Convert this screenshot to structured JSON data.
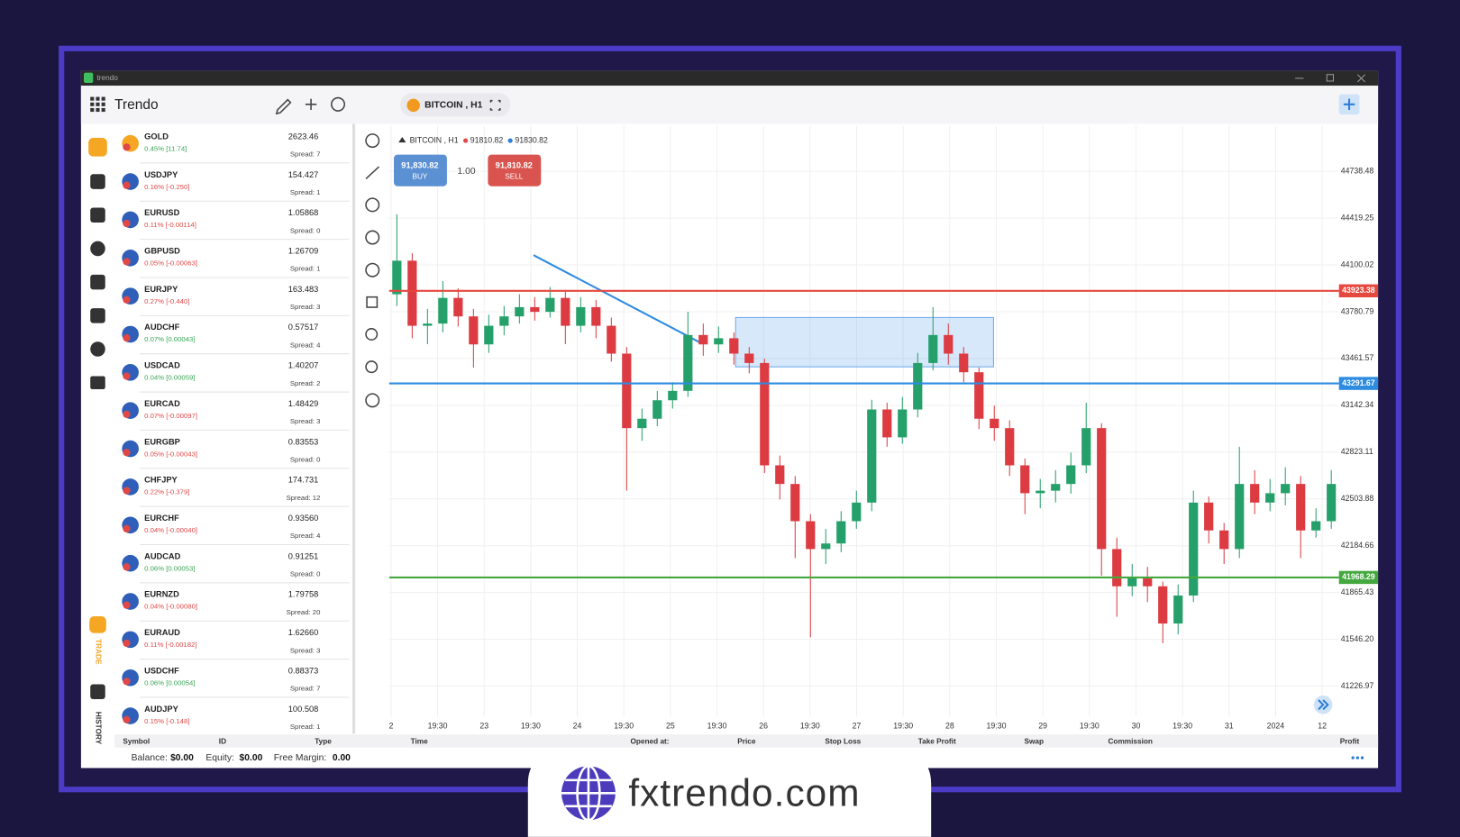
{
  "window": {
    "title": "trendo"
  },
  "header": {
    "app_name": "Trendo",
    "tab": "BITCOIN , H1"
  },
  "sidebar": {
    "trade": "TRADE",
    "history": "HISTORY"
  },
  "watchlist": [
    {
      "symbol": "GOLD",
      "change": "0.45% [11.74]",
      "price": "2623.46",
      "spread": "Spread: 7",
      "color": "#3aa655"
    },
    {
      "symbol": "USDJPY",
      "change": "0.16% [-0.250]",
      "price": "154.427",
      "spread": "Spread: 1",
      "color": "#e04848"
    },
    {
      "symbol": "EURUSD",
      "change": "0.11% [-0.00114]",
      "price": "1.05868",
      "spread": "Spread: 0",
      "color": "#e04848"
    },
    {
      "symbol": "GBPUSD",
      "change": "0.05% [-0.00063]",
      "price": "1.26709",
      "spread": "Spread: 1",
      "color": "#e04848"
    },
    {
      "symbol": "EURJPY",
      "change": "0.27% [-0.440]",
      "price": "163.483",
      "spread": "Spread: 3",
      "color": "#e04848"
    },
    {
      "symbol": "AUDCHF",
      "change": "0.07% [0.00043]",
      "price": "0.57517",
      "spread": "Spread: 4",
      "color": "#3aa655"
    },
    {
      "symbol": "USDCAD",
      "change": "0.04% [0.00059]",
      "price": "1.40207",
      "spread": "Spread: 2",
      "color": "#3aa655"
    },
    {
      "symbol": "EURCAD",
      "change": "0.07% [-0.00097]",
      "price": "1.48429",
      "spread": "Spread: 3",
      "color": "#e04848"
    },
    {
      "symbol": "EURGBP",
      "change": "0.05% [-0.00043]",
      "price": "0.83553",
      "spread": "Spread: 0",
      "color": "#e04848"
    },
    {
      "symbol": "CHFJPY",
      "change": "0.22% [-0.379]",
      "price": "174.731",
      "spread": "Spread: 12",
      "color": "#e04848"
    },
    {
      "symbol": "EURCHF",
      "change": "0.04% [-0.00040]",
      "price": "0.93560",
      "spread": "Spread: 4",
      "color": "#e04848"
    },
    {
      "symbol": "AUDCAD",
      "change": "0.06% [0.00053]",
      "price": "0.91251",
      "spread": "Spread: 0",
      "color": "#3aa655"
    },
    {
      "symbol": "EURNZD",
      "change": "0.04% [-0.00080]",
      "price": "1.79758",
      "spread": "Spread: 20",
      "color": "#e04848"
    },
    {
      "symbol": "EURAUD",
      "change": "0.11% [-0.00182]",
      "price": "1.62660",
      "spread": "Spread: 3",
      "color": "#e04848"
    },
    {
      "symbol": "USDCHF",
      "change": "0.06% [0.00054]",
      "price": "0.88373",
      "spread": "Spread: 7",
      "color": "#3aa655"
    },
    {
      "symbol": "AUDJPY",
      "change": "0.15% [-0.148]",
      "price": "100.508",
      "spread": "Spread: 1",
      "color": "#e04848"
    }
  ],
  "chart_data": {
    "type": "candlestick",
    "quote": {
      "symbol": "BITCOIN , H1",
      "bid": "91810.82",
      "ask": "91830.82"
    },
    "trade_panel": {
      "buy_price": "91,830.82",
      "buy_label": "BUY",
      "volume": "1.00",
      "sell_price": "91,810.82",
      "sell_label": "SELL"
    },
    "x_labels": [
      "2",
      "19:30",
      "23",
      "19:30",
      "24",
      "19:30",
      "25",
      "19:30",
      "26",
      "19:30",
      "27",
      "19:30",
      "28",
      "19:30",
      "29",
      "19:30",
      "30",
      "19:30",
      "31",
      "2024",
      "12"
    ],
    "open": [
      43900,
      44129,
      43685,
      43700,
      43875,
      43749,
      43558,
      43685,
      43749,
      43812,
      43780,
      43875,
      43685,
      43812,
      43685,
      43495,
      42987,
      43051,
      43177,
      43241,
      43622,
      43558,
      43600,
      43495,
      43431,
      42733,
      42606,
      42352,
      42162,
      42200,
      42352,
      42479,
      43114,
      42924,
      43114,
      43431,
      43622,
      43495,
      43368,
      43051,
      42987,
      42733,
      42543,
      42560,
      42606,
      42733,
      42987,
      42162,
      41908,
      41972,
      41908,
      41654,
      41845,
      42479,
      42289,
      42162,
      42606,
      42479,
      42543,
      42606,
      42289,
      42352
    ],
    "high": [
      44446,
      44180,
      43800,
      43990,
      43940,
      43800,
      43760,
      43820,
      43900,
      43880,
      43950,
      43920,
      43880,
      43860,
      43740,
      43540,
      43120,
      43240,
      43300,
      43780,
      43700,
      43680,
      43640,
      43540,
      43460,
      42800,
      42660,
      42400,
      42300,
      42420,
      42560,
      43180,
      43160,
      43200,
      43500,
      43812,
      43700,
      43540,
      43400,
      43140,
      43040,
      42780,
      42640,
      42700,
      42820,
      43160,
      43020,
      42240,
      42060,
      42040,
      41940,
      41920,
      42560,
      42520,
      42340,
      42860,
      42700,
      42640,
      42720,
      42660,
      42440,
      42700
    ],
    "low": [
      43820,
      43600,
      43560,
      43640,
      43680,
      43400,
      43500,
      43620,
      43700,
      43720,
      43740,
      43560,
      43640,
      43600,
      43440,
      42560,
      42900,
      43000,
      43120,
      43200,
      43480,
      43500,
      43420,
      43360,
      42680,
      42500,
      42100,
      41560,
      42060,
      42140,
      42300,
      42420,
      42860,
      42880,
      43060,
      43380,
      43420,
      43300,
      42980,
      42900,
      42660,
      42400,
      42440,
      42480,
      42540,
      42680,
      41980,
      41700,
      41840,
      41800,
      41520,
      41580,
      41800,
      42200,
      42060,
      42100,
      42400,
      42420,
      42460,
      42100,
      42240,
      42300
    ],
    "close": [
      44129,
      43685,
      43700,
      43875,
      43749,
      43558,
      43685,
      43749,
      43812,
      43780,
      43875,
      43685,
      43812,
      43685,
      43495,
      42987,
      43051,
      43177,
      43241,
      43622,
      43558,
      43600,
      43495,
      43431,
      42733,
      42606,
      42352,
      42162,
      42200,
      42352,
      42479,
      43114,
      42924,
      43114,
      43431,
      43622,
      43495,
      43368,
      43051,
      42987,
      42733,
      42543,
      42560,
      42606,
      42733,
      42987,
      42162,
      41908,
      41972,
      41908,
      41654,
      41845,
      42479,
      42289,
      42162,
      42606,
      42479,
      42543,
      42606,
      42289,
      42352,
      42606
    ],
    "up_color": "#26a06a",
    "down_color": "#dc3b41",
    "ylim": [
      41017.5,
      45049.4
    ],
    "yticks": [
      44738.48,
      44419.25,
      44100.02,
      43780.79,
      43461.57,
      43142.34,
      42823.11,
      42503.88,
      42184.66,
      41865.43,
      {
        "value": 41546.2,
        "label": "41546.20"
      },
      41226.97
    ],
    "grid": true,
    "levels": [
      {
        "value": 43923.38,
        "color": "#e5483f"
      },
      {
        "value": 43291.67,
        "color": "#2d8be0"
      },
      {
        "value": 41968.29,
        "color": "#45a83f"
      }
    ]
  },
  "positions_table": {
    "columns": [
      "Symbol",
      "ID",
      "Type",
      "Time",
      "Opened at:",
      "Price",
      "Stop Loss",
      "Take Profit",
      "Swap",
      "Commission",
      "Profit"
    ]
  },
  "account": {
    "balance_label": "Balance:",
    "balance": "$0.00",
    "equity_label": "Equity:",
    "equity": "$0.00",
    "margin_label": "Free Margin:",
    "margin": "0.00"
  },
  "banner": {
    "text": "fxtrendo.com"
  }
}
